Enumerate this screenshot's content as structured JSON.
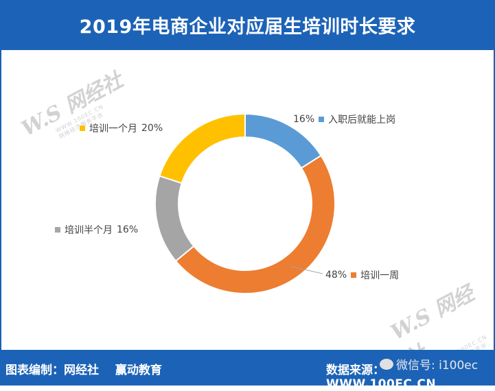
{
  "header": {
    "title": "2019年电商企业对应届生培训时长要求"
  },
  "footer": {
    "left_label": "图表编制：网经社",
    "left_partner": "赢动教育",
    "right_label": "数据来源：",
    "right_url": "WWW.100EC.CN",
    "wechat": "微信号: i100ec"
  },
  "watermark": {
    "logo": "W.S 网经社",
    "url": "WWW.100EC.CN",
    "tagline": "网络经济服务平台"
  },
  "chart_data": {
    "type": "pie",
    "title": "2019年电商企业对应届生培训时长要求",
    "donut": true,
    "slices": [
      {
        "label": "入职后就能上岗",
        "value": 16,
        "display": "16%",
        "color": "#5b9bd5"
      },
      {
        "label": "培训一周",
        "value": 48,
        "display": "48%",
        "color": "#ed7d31"
      },
      {
        "label": "培训半个月",
        "value": 16,
        "display": "16%",
        "color": "#a5a5a5"
      },
      {
        "label": "培训一个月",
        "value": 20,
        "display": "20%",
        "color": "#ffc000"
      }
    ]
  }
}
